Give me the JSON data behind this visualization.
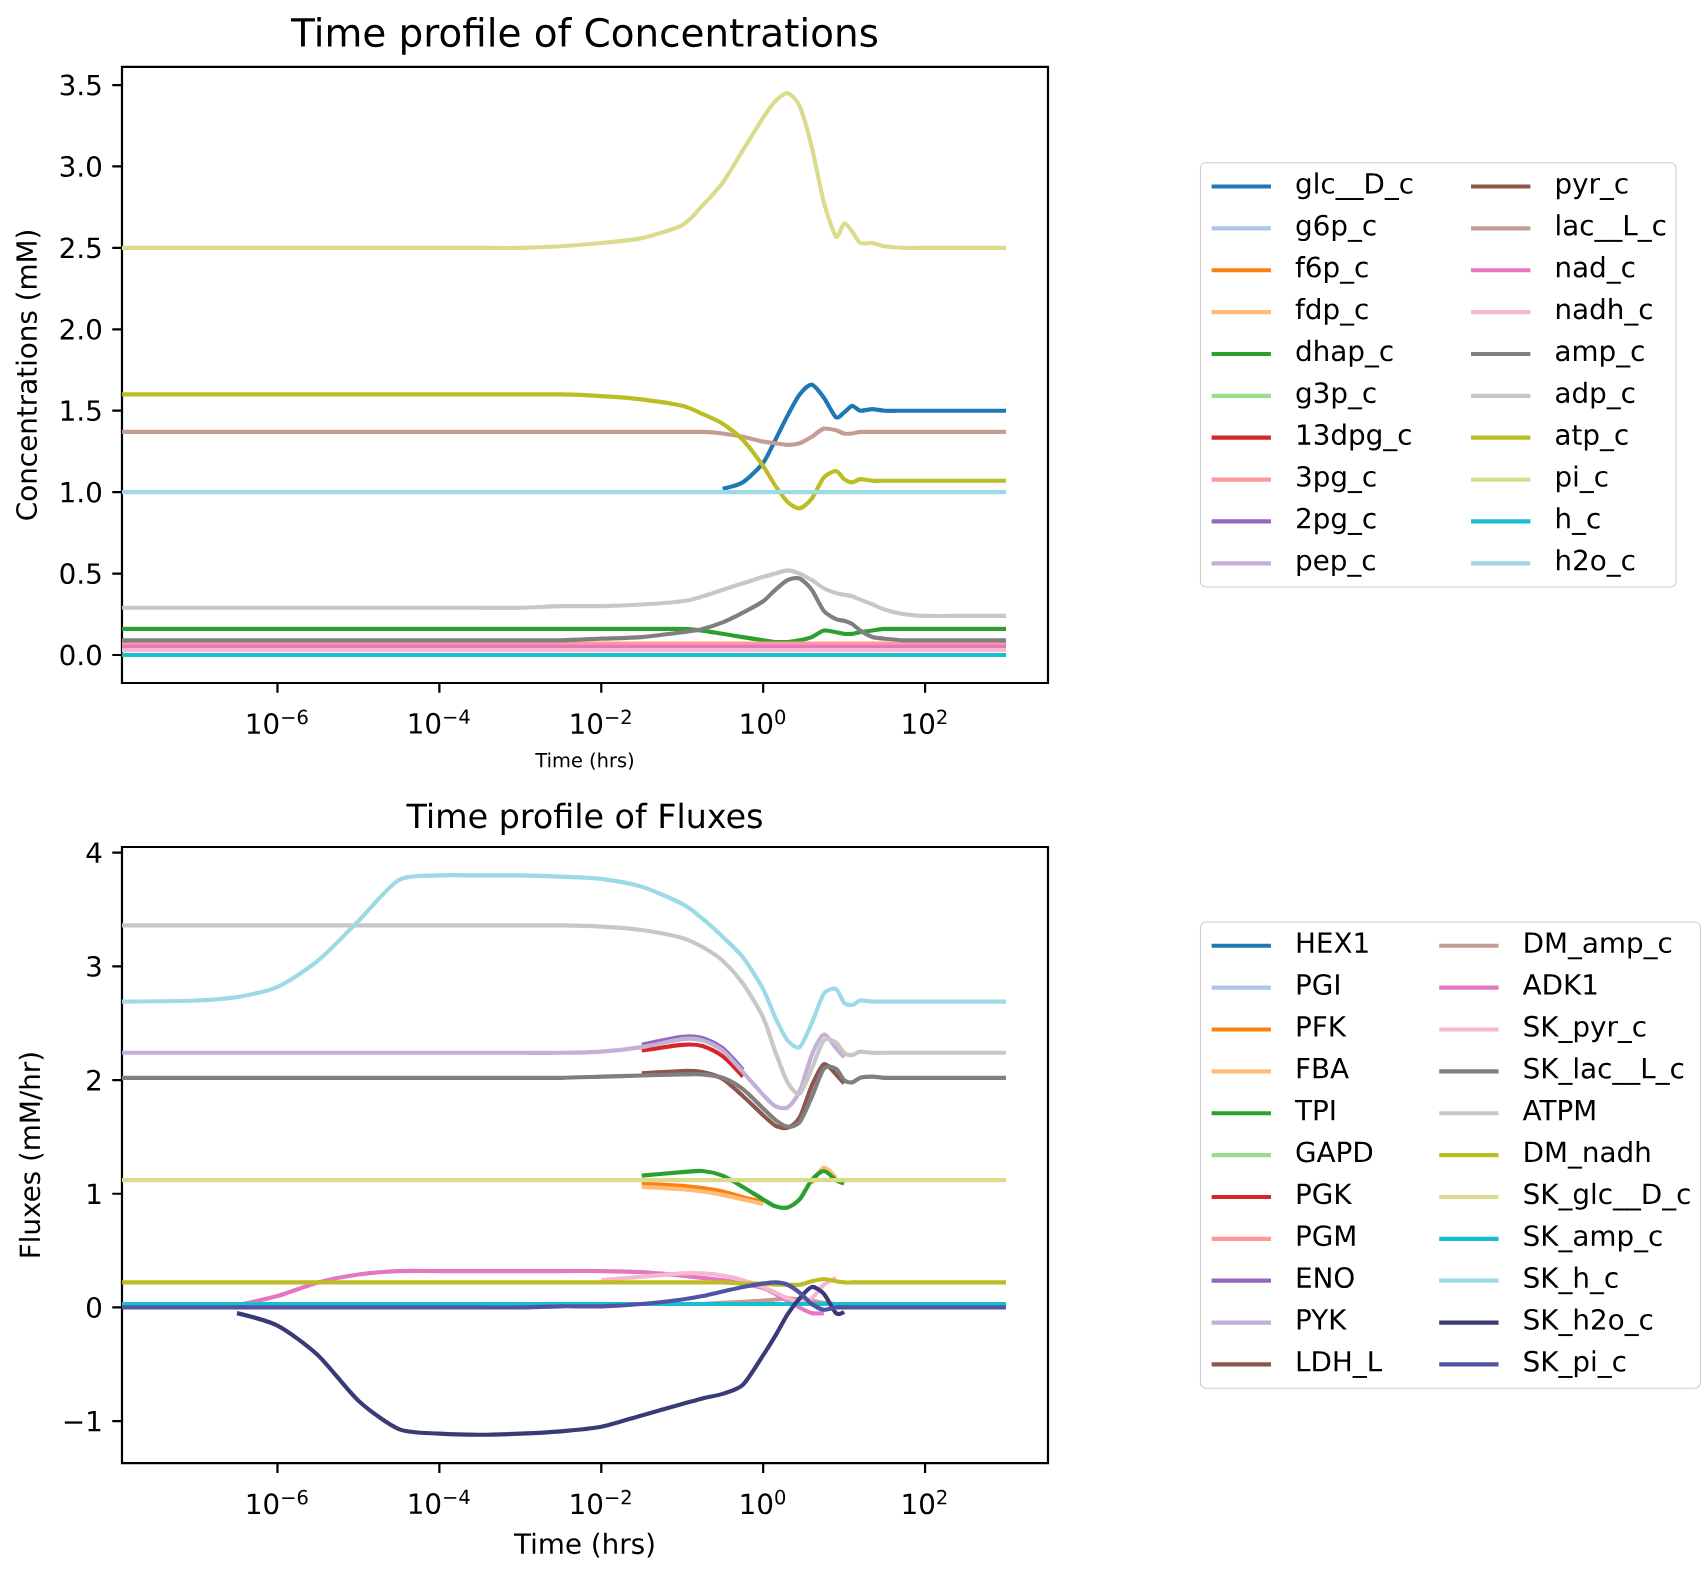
{
  "chart_data": [
    {
      "type": "line",
      "title": "Time profile of Concentrations",
      "xlabel": "Time (hrs)",
      "ylabel": "Concentrations (mM)",
      "log": "x",
      "legend": "right",
      "xlim": [
        1.2e-08,
        3300
      ],
      "ylim": [
        -0.172,
        3.612
      ],
      "xticks": [
        {
          "value": 1e-06,
          "label": "10$^{−6}$"
        },
        {
          "value": 0.0001,
          "label": "10$^{−4}$"
        },
        {
          "value": 0.01,
          "label": "10$^{−2}$"
        },
        {
          "value": 1,
          "label": "10$^{0}$"
        },
        {
          "value": 100,
          "label": "10$^{2}$"
        }
      ],
      "yticks": [
        {
          "value": 0,
          "label": "0.0"
        },
        0.5,
        {
          "value": 1,
          "label": "1.0"
        },
        1.5,
        {
          "value": 2,
          "label": "2.0"
        },
        2.5,
        {
          "value": 3,
          "label": "3.0"
        },
        3.5
      ],
      "x": [
        1.2e-08,
        1e-07,
        3.16e-07,
        1e-06,
        3.16e-06,
        1e-05,
        3.16e-05,
        0.0001,
        0.000316,
        0.001,
        0.00316,
        0.01,
        0.0316,
        0.1,
        0.178,
        0.316,
        0.562,
        1,
        1.41,
        2,
        2.82,
        3.98,
        5.62,
        7.94,
        10,
        12.6,
        15.8,
        22.4,
        31.6,
        56.2,
        100,
        316,
        1000
      ],
      "series": [
        {
          "name": "glc__D_c",
          "color": "#1f77b4",
          "values": [
            null,
            null,
            null,
            null,
            null,
            null,
            null,
            null,
            null,
            null,
            null,
            null,
            null,
            null,
            null,
            1.02,
            1.06,
            1.18,
            1.32,
            1.47,
            1.6,
            1.66,
            1.58,
            1.46,
            1.49,
            1.53,
            1.5,
            1.51,
            1.5,
            1.5,
            1.5,
            1.5,
            1.5
          ]
        },
        {
          "name": "g6p_c",
          "color": "#aec7e8",
          "values": [
            null,
            null,
            null,
            null,
            null,
            null,
            null,
            null,
            null,
            null,
            null,
            null,
            null,
            null,
            null,
            null,
            null,
            null,
            null,
            null,
            null,
            null,
            null,
            null,
            null,
            null,
            null,
            null,
            null,
            null,
            null,
            null,
            null
          ]
        },
        {
          "name": "f6p_c",
          "color": "#ff7f0e",
          "values": [
            null,
            null,
            null,
            null,
            null,
            null,
            null,
            null,
            null,
            null,
            null,
            null,
            null,
            null,
            null,
            null,
            null,
            null,
            null,
            null,
            null,
            null,
            null,
            null,
            null,
            null,
            null,
            null,
            null,
            null,
            null,
            null,
            null
          ]
        },
        {
          "name": "fdp_c",
          "color": "#ffbb78",
          "values": [
            null,
            null,
            null,
            null,
            null,
            null,
            null,
            null,
            null,
            null,
            null,
            null,
            null,
            null,
            null,
            null,
            null,
            null,
            null,
            null,
            null,
            null,
            null,
            null,
            null,
            null,
            null,
            null,
            null,
            null,
            null,
            null,
            null
          ]
        },
        {
          "name": "dhap_c",
          "color": "#2ca02c",
          "values": [
            0.16,
            0.16,
            0.16,
            0.16,
            0.16,
            0.16,
            0.16,
            0.16,
            0.16,
            0.16,
            0.16,
            0.16,
            0.16,
            0.16,
            0.15,
            0.13,
            0.11,
            0.09,
            0.08,
            0.08,
            0.09,
            0.11,
            0.15,
            0.14,
            0.13,
            0.13,
            0.14,
            0.15,
            0.16,
            0.16,
            0.16,
            0.16,
            0.16
          ]
        },
        {
          "name": "g3p_c",
          "color": "#98df8a",
          "values": [
            null,
            null,
            null,
            null,
            null,
            null,
            null,
            null,
            null,
            null,
            null,
            null,
            null,
            null,
            null,
            null,
            null,
            null,
            null,
            null,
            null,
            null,
            null,
            null,
            null,
            null,
            null,
            null,
            null,
            null,
            null,
            null,
            null
          ]
        },
        {
          "name": "13dpg_c",
          "color": "#d62728",
          "values": [
            null,
            null,
            null,
            null,
            null,
            null,
            null,
            null,
            null,
            null,
            null,
            null,
            null,
            null,
            null,
            null,
            null,
            null,
            null,
            null,
            null,
            null,
            null,
            null,
            null,
            null,
            null,
            null,
            null,
            null,
            null,
            null,
            null
          ]
        },
        {
          "name": "3pg_c",
          "color": "#ff9896",
          "values": [
            0.07,
            0.07,
            0.07,
            0.07,
            0.07,
            0.07,
            0.07,
            0.07,
            0.07,
            0.07,
            0.07,
            0.07,
            0.07,
            0.07,
            0.07,
            0.07,
            0.07,
            0.07,
            0.07,
            0.07,
            0.07,
            0.07,
            0.07,
            0.07,
            0.07,
            0.07,
            0.07,
            0.07,
            0.07,
            0.07,
            0.07,
            0.07,
            0.07
          ]
        },
        {
          "name": "2pg_c",
          "color": "#9467bd",
          "values": [
            null,
            null,
            null,
            null,
            null,
            null,
            null,
            null,
            null,
            null,
            null,
            null,
            null,
            null,
            null,
            null,
            null,
            null,
            null,
            null,
            null,
            null,
            null,
            null,
            null,
            null,
            null,
            null,
            null,
            null,
            null,
            null,
            null
          ]
        },
        {
          "name": "pep_c",
          "color": "#c5b0d5",
          "values": [
            null,
            null,
            null,
            null,
            null,
            null,
            null,
            null,
            null,
            null,
            null,
            null,
            null,
            null,
            null,
            null,
            null,
            null,
            null,
            null,
            null,
            null,
            null,
            null,
            null,
            null,
            null,
            null,
            null,
            null,
            null,
            null,
            null
          ]
        },
        {
          "name": "pyr_c",
          "color": "#8c564b",
          "values": [
            null,
            null,
            null,
            null,
            null,
            null,
            null,
            null,
            null,
            null,
            null,
            null,
            null,
            null,
            null,
            null,
            null,
            null,
            null,
            null,
            null,
            null,
            null,
            null,
            null,
            null,
            null,
            null,
            null,
            null,
            null,
            null,
            null
          ]
        },
        {
          "name": "lac__L_c",
          "color": "#c49c94",
          "values": [
            1.37,
            1.37,
            1.37,
            1.37,
            1.37,
            1.37,
            1.37,
            1.37,
            1.37,
            1.37,
            1.37,
            1.37,
            1.37,
            1.37,
            1.37,
            1.36,
            1.34,
            1.31,
            1.3,
            1.29,
            1.3,
            1.34,
            1.39,
            1.38,
            1.36,
            1.36,
            1.37,
            1.37,
            1.37,
            1.37,
            1.37,
            1.37,
            1.37
          ]
        },
        {
          "name": "nad_c",
          "color": "#e377c2",
          "values": [
            0.05,
            0.05,
            0.05,
            0.05,
            0.05,
            0.05,
            0.05,
            0.05,
            0.05,
            0.05,
            0.05,
            0.05,
            0.05,
            0.05,
            0.05,
            0.05,
            0.05,
            0.05,
            0.05,
            0.05,
            0.05,
            0.05,
            0.05,
            0.05,
            0.05,
            0.05,
            0.05,
            0.05,
            0.05,
            0.05,
            0.05,
            0.05,
            0.05
          ]
        },
        {
          "name": "nadh_c",
          "color": "#f7b6d2",
          "values": [
            0.03,
            0.03,
            0.03,
            0.03,
            0.03,
            0.03,
            0.03,
            0.03,
            0.03,
            0.03,
            0.03,
            0.03,
            0.03,
            0.03,
            0.03,
            0.03,
            0.03,
            0.03,
            0.03,
            0.03,
            0.03,
            0.03,
            0.03,
            0.03,
            0.03,
            0.03,
            0.03,
            0.03,
            0.03,
            0.03,
            0.03,
            0.03,
            0.03
          ]
        },
        {
          "name": "amp_c",
          "color": "#7f7f7f",
          "values": [
            0.09,
            0.09,
            0.09,
            0.09,
            0.09,
            0.09,
            0.09,
            0.09,
            0.09,
            0.09,
            0.09,
            0.1,
            0.11,
            0.14,
            0.16,
            0.2,
            0.26,
            0.33,
            0.4,
            0.46,
            0.47,
            0.4,
            0.27,
            0.22,
            0.21,
            0.19,
            0.15,
            0.11,
            0.1,
            0.09,
            0.09,
            0.09,
            0.09
          ]
        },
        {
          "name": "adp_c",
          "color": "#c7c7c7",
          "values": [
            0.29,
            0.29,
            0.29,
            0.29,
            0.29,
            0.29,
            0.29,
            0.29,
            0.29,
            0.29,
            0.3,
            0.3,
            0.31,
            0.33,
            0.36,
            0.4,
            0.44,
            0.48,
            0.5,
            0.52,
            0.5,
            0.46,
            0.41,
            0.38,
            0.37,
            0.36,
            0.34,
            0.31,
            0.28,
            0.25,
            0.24,
            0.24,
            0.24
          ]
        },
        {
          "name": "atp_c",
          "color": "#bcbd22",
          "values": [
            1.6,
            1.6,
            1.6,
            1.6,
            1.6,
            1.6,
            1.6,
            1.6,
            1.6,
            1.6,
            1.6,
            1.59,
            1.57,
            1.53,
            1.48,
            1.42,
            1.32,
            1.16,
            1.04,
            0.94,
            0.9,
            0.96,
            1.09,
            1.13,
            1.08,
            1.06,
            1.08,
            1.07,
            1.07,
            1.07,
            1.07,
            1.07,
            1.07
          ]
        },
        {
          "name": "pi_c",
          "color": "#dbdb8d",
          "values": [
            2.5,
            2.5,
            2.5,
            2.5,
            2.5,
            2.5,
            2.5,
            2.5,
            2.5,
            2.5,
            2.51,
            2.53,
            2.56,
            2.64,
            2.76,
            2.9,
            3.1,
            3.3,
            3.4,
            3.45,
            3.37,
            3.12,
            2.78,
            2.57,
            2.65,
            2.6,
            2.53,
            2.53,
            2.51,
            2.5,
            2.5,
            2.5,
            2.5
          ]
        },
        {
          "name": "h_c",
          "color": "#17becf",
          "values": [
            0,
            0,
            0,
            0,
            0,
            0,
            0,
            0,
            0,
            0,
            0,
            0,
            0,
            0,
            0,
            0,
            0,
            0,
            0,
            0,
            0,
            0,
            0,
            0,
            0,
            0,
            0,
            0,
            0,
            0,
            0,
            0,
            0
          ]
        },
        {
          "name": "h2o_c",
          "color": "#9edae5",
          "values": [
            1,
            1,
            1,
            1,
            1,
            1,
            1,
            1,
            1,
            1,
            1,
            1,
            1,
            1,
            1,
            1,
            1,
            1,
            1,
            1,
            1,
            1,
            1,
            1,
            1,
            1,
            1,
            1,
            1,
            1,
            1,
            1,
            1
          ]
        }
      ]
    },
    {
      "type": "line",
      "title": "Time profile of Fluxes",
      "xlabel": "Time (hrs)",
      "ylabel": "Fluxes (mM/hr)",
      "log": "x",
      "legend": "right",
      "xlim": [
        1.2e-08,
        3300
      ],
      "ylim": [
        -1.37,
        4.05
      ],
      "xticks": [
        {
          "value": 1e-06,
          "label": "10$^{−6}$"
        },
        {
          "value": 0.0001,
          "label": "10$^{−4}$"
        },
        {
          "value": 0.01,
          "label": "10$^{−2}$"
        },
        {
          "value": 1,
          "label": "10$^{0}$"
        },
        {
          "value": 100,
          "label": "10$^{2}$"
        }
      ],
      "yticks": [
        {
          "value": -1,
          "label": "−1"
        },
        0,
        1,
        2,
        3,
        4
      ],
      "x": [
        1.2e-08,
        1e-07,
        3.16e-07,
        1e-06,
        3.16e-06,
        1e-05,
        3.16e-05,
        0.0001,
        0.000316,
        0.001,
        0.00316,
        0.01,
        0.0316,
        0.1,
        0.178,
        0.316,
        0.562,
        1,
        1.41,
        2,
        2.82,
        3.98,
        5.62,
        7.94,
        10,
        12.6,
        15.8,
        22.4,
        31.6,
        56.2,
        100,
        316,
        1000
      ],
      "series": [
        {
          "name": "HEX1",
          "color": "#1f77b4",
          "values": [
            null,
            null,
            null,
            null,
            null,
            null,
            null,
            null,
            null,
            null,
            null,
            null,
            null,
            null,
            null,
            null,
            null,
            null,
            null,
            null,
            null,
            null,
            null,
            null,
            null,
            null,
            null,
            null,
            null,
            null,
            null,
            null,
            null
          ]
        },
        {
          "name": "PGI",
          "color": "#aec7e8",
          "values": [
            null,
            null,
            null,
            null,
            null,
            null,
            null,
            null,
            null,
            null,
            null,
            null,
            null,
            null,
            null,
            null,
            null,
            null,
            null,
            null,
            null,
            null,
            null,
            null,
            null,
            null,
            null,
            null,
            null,
            null,
            null,
            null,
            null
          ]
        },
        {
          "name": "PFK",
          "color": "#ff7f0e",
          "values": [
            null,
            null,
            null,
            null,
            null,
            null,
            null,
            null,
            null,
            null,
            null,
            null,
            1.09,
            1.07,
            1.05,
            1.02,
            0.97,
            0.93,
            null,
            null,
            null,
            null,
            null,
            null,
            null,
            null,
            null,
            null,
            null,
            null,
            null,
            null,
            null
          ]
        },
        {
          "name": "FBA",
          "color": "#ffbb78",
          "values": [
            null,
            null,
            null,
            null,
            null,
            null,
            null,
            null,
            null,
            null,
            null,
            null,
            1.06,
            1.04,
            1.02,
            0.99,
            0.95,
            0.91,
            null,
            null,
            null,
            1.09,
            1.23,
            1.14,
            null,
            null,
            null,
            null,
            null,
            null,
            null,
            null,
            null
          ]
        },
        {
          "name": "TPI",
          "color": "#2ca02c",
          "values": [
            null,
            null,
            null,
            null,
            null,
            null,
            null,
            null,
            null,
            null,
            null,
            null,
            1.16,
            1.19,
            1.2,
            1.16,
            1.06,
            0.95,
            0.89,
            0.88,
            0.95,
            1.12,
            1.2,
            1.12,
            1.09,
            null,
            null,
            null,
            null,
            null,
            null,
            null,
            null
          ]
        },
        {
          "name": "GAPD",
          "color": "#98df8a",
          "values": [
            null,
            null,
            null,
            null,
            null,
            null,
            null,
            null,
            null,
            null,
            null,
            null,
            null,
            null,
            null,
            null,
            null,
            null,
            null,
            null,
            null,
            null,
            null,
            null,
            null,
            null,
            null,
            null,
            null,
            null,
            null,
            null,
            null
          ]
        },
        {
          "name": "PGK",
          "color": "#d62728",
          "values": [
            null,
            null,
            null,
            null,
            null,
            null,
            null,
            null,
            null,
            null,
            null,
            null,
            2.26,
            2.31,
            2.3,
            2.21,
            2.03,
            null,
            null,
            null,
            null,
            null,
            null,
            null,
            null,
            null,
            null,
            null,
            null,
            null,
            null,
            null,
            null
          ]
        },
        {
          "name": "PGM",
          "color": "#ff9896",
          "values": [
            null,
            null,
            null,
            null,
            null,
            null,
            null,
            null,
            null,
            null,
            null,
            null,
            null,
            null,
            null,
            null,
            null,
            null,
            null,
            null,
            null,
            null,
            null,
            null,
            null,
            null,
            null,
            null,
            null,
            null,
            null,
            null,
            null
          ]
        },
        {
          "name": "ENO",
          "color": "#9467bd",
          "values": [
            null,
            null,
            null,
            null,
            null,
            null,
            null,
            null,
            null,
            null,
            null,
            null,
            2.31,
            2.38,
            2.37,
            2.28,
            2.09,
            null,
            null,
            null,
            null,
            null,
            null,
            null,
            null,
            null,
            null,
            null,
            null,
            null,
            null,
            null,
            null
          ]
        },
        {
          "name": "PYK",
          "color": "#c5b0d5",
          "values": [
            2.24,
            2.24,
            2.24,
            2.24,
            2.24,
            2.24,
            2.24,
            2.24,
            2.24,
            2.24,
            2.24,
            2.25,
            2.29,
            2.36,
            2.35,
            2.26,
            2.07,
            1.87,
            1.77,
            1.76,
            1.9,
            2.22,
            2.4,
            2.28,
            2.2,
            null,
            null,
            null,
            null,
            null,
            null,
            null,
            null
          ]
        },
        {
          "name": "LDH_L",
          "color": "#8c564b",
          "values": [
            null,
            null,
            null,
            null,
            null,
            null,
            null,
            null,
            null,
            null,
            null,
            null,
            2.06,
            2.08,
            2.07,
            2.01,
            1.86,
            1.69,
            1.6,
            1.58,
            1.67,
            1.95,
            2.14,
            2.05,
            1.97,
            null,
            null,
            null,
            null,
            null,
            null,
            null,
            null
          ]
        },
        {
          "name": "DM_amp_c",
          "color": "#c49c94",
          "values": [
            null,
            null,
            null,
            null,
            null,
            null,
            null,
            null,
            null,
            null,
            null,
            null,
            null,
            null,
            0.03,
            0.04,
            0.05,
            0.06,
            0.07,
            0.08,
            0.07,
            0.06,
            0.04,
            0.03,
            null,
            null,
            null,
            null,
            null,
            null,
            null,
            null,
            null
          ]
        },
        {
          "name": "ADK1",
          "color": "#e377c2",
          "values": [
            null,
            null,
            0.02,
            0.1,
            0.22,
            0.29,
            0.32,
            0.32,
            0.32,
            0.32,
            0.32,
            0.32,
            0.31,
            0.28,
            0.26,
            0.24,
            0.21,
            0.17,
            0.12,
            0.06,
            0,
            -0.05,
            -0.05,
            null,
            null,
            null,
            null,
            null,
            null,
            null,
            null,
            null,
            null
          ]
        },
        {
          "name": "SK_pyr_c",
          "color": "#f7b6d2",
          "values": [
            null,
            null,
            null,
            null,
            null,
            null,
            null,
            null,
            null,
            null,
            null,
            0.24,
            0.27,
            0.3,
            0.3,
            0.28,
            0.24,
            0.18,
            0.13,
            0.08,
            0.05,
            0.08,
            0.2,
            0.26,
            null,
            null,
            null,
            null,
            null,
            null,
            null,
            null,
            null
          ]
        },
        {
          "name": "SK_lac__L_c",
          "color": "#7f7f7f",
          "values": [
            2.02,
            2.02,
            2.02,
            2.02,
            2.02,
            2.02,
            2.02,
            2.02,
            2.02,
            2.02,
            2.02,
            2.03,
            2.04,
            2.05,
            2.05,
            2.02,
            1.92,
            1.75,
            1.65,
            1.59,
            1.63,
            1.85,
            2.1,
            2.1,
            2,
            1.98,
            2.02,
            2.03,
            2.02,
            2.02,
            2.02,
            2.02,
            2.02
          ]
        },
        {
          "name": "ATPM",
          "color": "#c7c7c7",
          "values": [
            3.36,
            3.36,
            3.36,
            3.36,
            3.36,
            3.36,
            3.36,
            3.36,
            3.36,
            3.36,
            3.36,
            3.35,
            3.32,
            3.25,
            3.17,
            3.05,
            2.85,
            2.55,
            2.25,
            1.98,
            1.88,
            2.1,
            2.35,
            2.33,
            2.24,
            2.22,
            2.25,
            2.24,
            2.24,
            2.24,
            2.24,
            2.24,
            2.24
          ]
        },
        {
          "name": "DM_nadh",
          "color": "#bcbd22",
          "values": [
            0.22,
            0.22,
            0.22,
            0.22,
            0.22,
            0.22,
            0.22,
            0.22,
            0.22,
            0.22,
            0.22,
            0.22,
            0.22,
            0.22,
            0.22,
            0.22,
            0.21,
            0.21,
            0.2,
            0.2,
            0.2,
            0.23,
            0.25,
            0.23,
            0.22,
            0.22,
            0.22,
            0.22,
            0.22,
            0.22,
            0.22,
            0.22,
            0.22
          ]
        },
        {
          "name": "SK_glc__D_c",
          "color": "#dbdb8d",
          "values": [
            1.12,
            1.12,
            1.12,
            1.12,
            1.12,
            1.12,
            1.12,
            1.12,
            1.12,
            1.12,
            1.12,
            1.12,
            1.12,
            1.12,
            1.12,
            1.12,
            1.12,
            1.12,
            1.12,
            1.12,
            1.12,
            1.12,
            1.12,
            1.12,
            1.12,
            1.12,
            1.12,
            1.12,
            1.12,
            1.12,
            1.12,
            1.12,
            1.12
          ]
        },
        {
          "name": "SK_amp_c",
          "color": "#17becf",
          "values": [
            0.03,
            0.03,
            0.03,
            0.03,
            0.03,
            0.03,
            0.03,
            0.03,
            0.03,
            0.03,
            0.03,
            0.03,
            0.03,
            0.03,
            0.03,
            0.03,
            0.03,
            0.03,
            0.03,
            0.03,
            0.03,
            0.03,
            0.03,
            0.03,
            0.03,
            0.03,
            0.03,
            0.03,
            0.03,
            0.03,
            0.03,
            0.03,
            0.03
          ]
        },
        {
          "name": "SK_h_c",
          "color": "#9edae5",
          "values": [
            2.69,
            2.7,
            2.73,
            2.82,
            3.05,
            3.4,
            3.76,
            3.8,
            3.8,
            3.8,
            3.79,
            3.77,
            3.7,
            3.55,
            3.42,
            3.26,
            3.08,
            2.8,
            2.55,
            2.35,
            2.29,
            2.5,
            2.76,
            2.8,
            2.68,
            2.66,
            2.7,
            2.69,
            2.69,
            2.69,
            2.69,
            2.69,
            2.69
          ]
        },
        {
          "name": "SK_h2o_c",
          "color": "#393b79",
          "values": [
            null,
            null,
            -0.05,
            -0.16,
            -0.42,
            -0.82,
            -1.07,
            -1.11,
            -1.12,
            -1.11,
            -1.09,
            -1.05,
            -0.95,
            -0.85,
            -0.8,
            -0.76,
            -0.68,
            -0.42,
            -0.25,
            -0.06,
            0.08,
            0.18,
            0.12,
            -0.05,
            -0.04,
            null,
            null,
            null,
            null,
            null,
            null,
            null,
            null
          ]
        },
        {
          "name": "SK_pi_c",
          "color": "#5254a3",
          "values": [
            0,
            0,
            0,
            0,
            0,
            0,
            0,
            0,
            0,
            0,
            0.01,
            0.01,
            0.03,
            0.07,
            0.1,
            0.14,
            0.18,
            0.21,
            0.22,
            0.2,
            0.13,
            0.03,
            -0.02,
            0,
            0,
            0,
            0,
            0,
            0,
            0,
            0,
            0,
            0
          ]
        }
      ]
    }
  ]
}
